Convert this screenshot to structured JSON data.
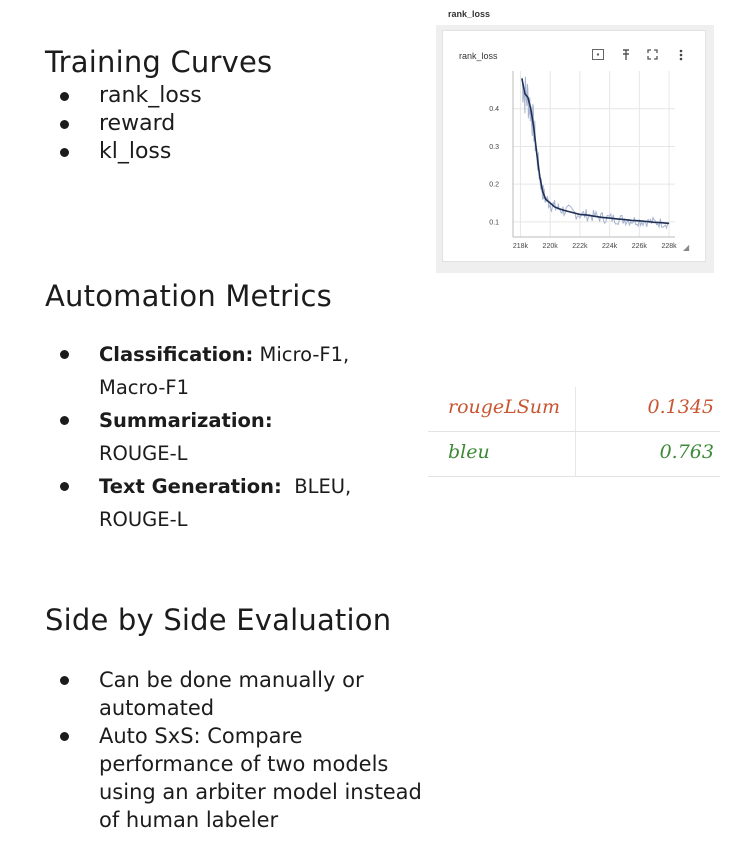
{
  "sections": {
    "training": {
      "title": "Training Curves",
      "items": [
        "rank_loss",
        "reward",
        "kl_loss"
      ]
    },
    "automation": {
      "title": "Automation Metrics",
      "items": [
        {
          "label": "Classification:",
          "text": " Micro-F1,",
          "cont": "Macro-F1"
        },
        {
          "label": "Summarization:",
          "text": "",
          "cont": "ROUGE-L"
        },
        {
          "label": "Text Generation:",
          "text": "  BLEU,",
          "cont": "ROUGE-L"
        }
      ]
    },
    "sxs": {
      "title": "Side by Side Evaluation",
      "items": [
        {
          "l1": "Can be done manually or",
          "l2": "automated"
        },
        {
          "l1": "Auto SxS: Compare",
          "l2": "performance of two models",
          "l3": "using an arbiter model instead",
          "l4": "of human labeler"
        }
      ]
    }
  },
  "chart_card": {
    "caption": "rank_loss",
    "toolbar_icons": [
      "fit-domain-icon",
      "pin-icon",
      "fullscreen-icon",
      "more-vert-icon"
    ]
  },
  "chart_data": {
    "type": "line",
    "title": "rank_loss",
    "xlabel": "",
    "ylabel": "",
    "x_ticks": [
      "218k",
      "220k",
      "222k",
      "224k",
      "226k",
      "228k"
    ],
    "y_ticks": [
      "0.1",
      "0.2",
      "0.3",
      "0.4"
    ],
    "xlim": [
      217500,
      228400
    ],
    "ylim": [
      0.06,
      0.5
    ],
    "grid": true,
    "series": [
      {
        "color": "#1f2f55",
        "raw_color": "#a7b4cf",
        "x": [
          218100,
          218300,
          218500,
          218700,
          218900,
          219100,
          219300,
          219500,
          219700,
          220000,
          220300,
          220600,
          221000,
          221500,
          222000,
          222500,
          223000,
          223500,
          224000,
          224500,
          225000,
          225500,
          226000,
          226500,
          227000,
          227500,
          228000
        ],
        "values": [
          0.48,
          0.44,
          0.43,
          0.4,
          0.35,
          0.28,
          0.22,
          0.18,
          0.16,
          0.15,
          0.14,
          0.135,
          0.13,
          0.125,
          0.12,
          0.118,
          0.115,
          0.112,
          0.11,
          0.108,
          0.106,
          0.104,
          0.103,
          0.101,
          0.099,
          0.098,
          0.096
        ]
      }
    ]
  },
  "metrics_table": {
    "rows": [
      {
        "name": "rougeLSum",
        "value": "0.1345",
        "color": "#c85632"
      },
      {
        "name": "bleu",
        "value": "0.763",
        "color": "#3c8a36"
      }
    ]
  }
}
